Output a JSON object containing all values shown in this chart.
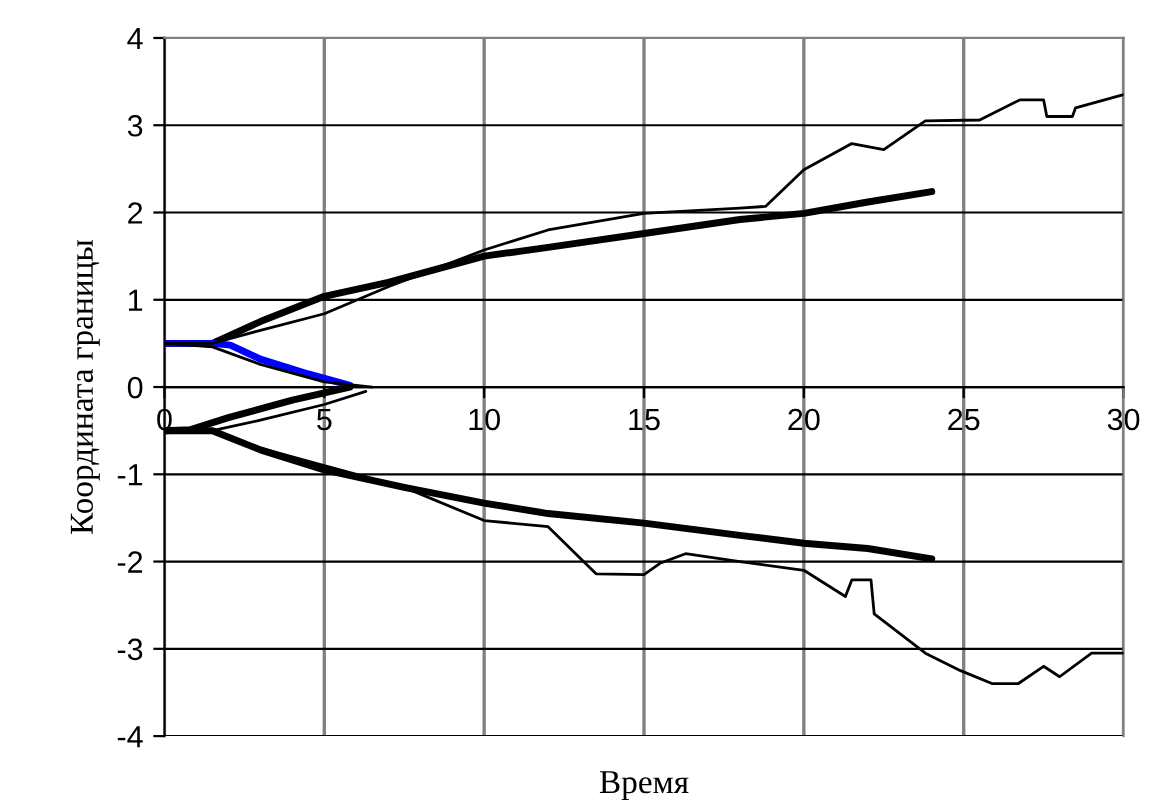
{
  "chart_data": {
    "type": "line",
    "xlabel": "Время",
    "ylabel": "Координата границы",
    "xlim": [
      0,
      30
    ],
    "ylim": [
      -4,
      4
    ],
    "xticks": [
      0,
      5,
      10,
      15,
      20,
      25,
      30
    ],
    "yticks": [
      -4,
      -3,
      -2,
      -1,
      0,
      1,
      2,
      3,
      4
    ],
    "grid": true,
    "legend": false,
    "series": [
      {
        "color": "#000000",
        "x": [
          0,
          1.5,
          3,
          5,
          7,
          10,
          12,
          15,
          18,
          18.8,
          20,
          21.5,
          22.5,
          23.8,
          25.5,
          26.75,
          27.5,
          27.6,
          28.4,
          28.5,
          30
        ],
        "values": [
          0.5,
          0.5,
          0.65,
          0.84,
          1.15,
          1.57,
          1.8,
          1.99,
          2.05,
          2.07,
          2.49,
          2.79,
          2.72,
          3.05,
          3.06,
          3.29,
          3.29,
          3.1,
          3.1,
          3.2,
          3.35
        ]
      },
      {
        "color": "#000000",
        "x": [
          0,
          1.5,
          3,
          5,
          7,
          10,
          12,
          15,
          18,
          20,
          22,
          24
        ],
        "values": [
          0.5,
          0.5,
          0.75,
          1.04,
          1.2,
          1.5,
          1.6,
          1.76,
          1.92,
          1.99,
          2.12,
          2.24
        ]
      },
      {
        "color": "#000000",
        "x": [
          0,
          1.5,
          3,
          5,
          7.5,
          10,
          12,
          13.5,
          15,
          15.5,
          16.3,
          18,
          20,
          21.3,
          21.5,
          22.1,
          22.2,
          23.8,
          24.9,
          25.9,
          26.7,
          27.5,
          28,
          29,
          30
        ],
        "values": [
          -0.5,
          -0.5,
          -0.7,
          -0.9,
          -1.15,
          -1.53,
          -1.6,
          -2.14,
          -2.15,
          -2.02,
          -1.91,
          -2.0,
          -2.1,
          -2.4,
          -2.21,
          -2.21,
          -2.6,
          -3.05,
          -3.25,
          -3.4,
          -3.4,
          -3.2,
          -3.32,
          -3.05,
          -3.05
        ]
      },
      {
        "color": "#000000",
        "x": [
          0,
          1.5,
          3,
          5,
          7.5,
          10,
          12,
          15,
          18,
          20,
          22,
          24
        ],
        "values": [
          -0.5,
          -0.5,
          -0.72,
          -0.95,
          -1.15,
          -1.33,
          -1.45,
          -1.56,
          -1.7,
          -1.79,
          -1.85,
          -1.97
        ]
      },
      {
        "color": "#000000",
        "x": [
          0,
          1.5,
          3,
          5,
          6.5
        ],
        "values": [
          0.5,
          0.46,
          0.26,
          0.06,
          0.0
        ]
      },
      {
        "color": "#0000ff",
        "x": [
          0,
          1.5,
          2.06,
          3,
          4.5,
          5.8
        ],
        "values": [
          0.5,
          0.5,
          0.48,
          0.32,
          0.15,
          0.02
        ]
      },
      {
        "color": "#000000",
        "x": [
          0,
          0.8,
          2,
          4,
          5.8
        ],
        "values": [
          -0.5,
          -0.49,
          -0.35,
          -0.15,
          0.0
        ]
      },
      {
        "color": "#000000",
        "x": [
          0,
          1.5,
          3,
          5,
          6.3
        ],
        "values": [
          -0.5,
          -0.5,
          -0.38,
          -0.2,
          -0.05
        ]
      }
    ]
  }
}
